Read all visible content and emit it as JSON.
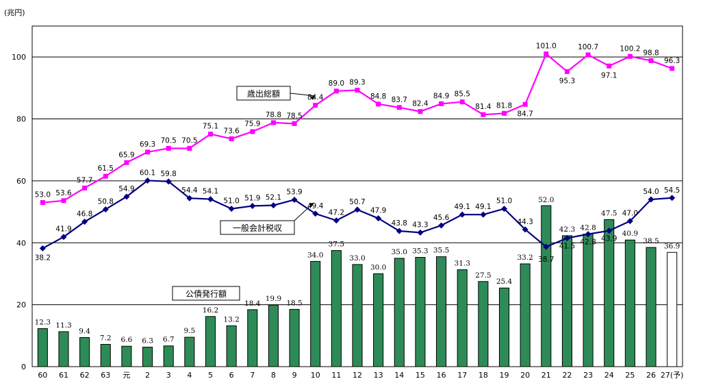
{
  "chart_data": {
    "type": "bar",
    "y_unit_label": "(兆円)",
    "categories": [
      "60",
      "61",
      "62",
      "63",
      "元",
      "2",
      "3",
      "4",
      "5",
      "6",
      "7",
      "8",
      "9",
      "10",
      "11",
      "12",
      "13",
      "14",
      "15",
      "16",
      "17",
      "18",
      "19",
      "20",
      "21",
      "22",
      "23",
      "24",
      "25",
      "26",
      "27(予)"
    ],
    "ylim": [
      0,
      110
    ],
    "yticks": [
      0,
      20,
      40,
      60,
      80,
      100
    ],
    "grid": true,
    "series": [
      {
        "name": "歳出総額",
        "kind": "line",
        "color": "#ff00ff",
        "marker": "square",
        "values": [
          53.0,
          53.6,
          57.7,
          61.5,
          65.9,
          69.3,
          70.5,
          70.5,
          75.1,
          73.6,
          75.9,
          78.8,
          78.5,
          84.4,
          89.0,
          89.3,
          84.8,
          83.7,
          82.4,
          84.9,
          85.5,
          81.4,
          81.8,
          84.7,
          101.0,
          95.3,
          100.7,
          97.1,
          100.2,
          98.8,
          96.3
        ],
        "labels": [
          "53.0",
          "53.6",
          "57.7",
          "61.5",
          "65.9",
          "69.3",
          "70.5",
          "70.5",
          "75.1",
          "73.6",
          "75.9",
          "78.8",
          "78.5",
          "84.4",
          "89.0",
          "89.3",
          "84.8",
          "83.7",
          "82.4",
          "84.9",
          "85.5",
          "81.4",
          "81.8",
          "84.7",
          "101.0",
          "95.3",
          "100.7",
          "97.1",
          "100.2",
          "98.8",
          "96.3"
        ]
      },
      {
        "name": "一般会計税収",
        "kind": "line",
        "color": "#000080",
        "marker": "diamond",
        "values": [
          38.2,
          41.9,
          46.8,
          50.8,
          54.9,
          60.1,
          59.8,
          54.4,
          54.1,
          51.0,
          51.9,
          52.1,
          53.9,
          49.4,
          47.2,
          50.7,
          47.9,
          43.8,
          43.3,
          45.6,
          49.1,
          49.1,
          51.0,
          44.3,
          38.7,
          41.5,
          42.8,
          43.9,
          47.0,
          54.0,
          54.5
        ],
        "labels": [
          "38.2",
          "41.9",
          "46.8",
          "50.8",
          "54.9",
          "60.1",
          "59.8",
          "54.4",
          "54.1",
          "51.0",
          "51.9",
          "52.1",
          "53.9",
          "49.4",
          "47.2",
          "50.7",
          "47.9",
          "43.8",
          "43.3",
          "45.6",
          "49.1",
          "49.1",
          "51.0",
          "44.3",
          "38.7",
          "41.5",
          "42.8",
          "43.9",
          "47.0",
          "54.0",
          "54.5"
        ]
      },
      {
        "name": "公債発行額",
        "kind": "bar",
        "color": "#2e8b57",
        "last_bar_color": "#ffffff",
        "values": [
          12.3,
          11.3,
          9.4,
          7.2,
          6.6,
          6.3,
          6.7,
          9.5,
          16.2,
          13.2,
          18.4,
          19.9,
          18.5,
          34.0,
          37.5,
          33.0,
          30.0,
          35.0,
          35.3,
          35.5,
          31.3,
          27.5,
          25.4,
          33.2,
          52.0,
          42.3,
          42.8,
          47.5,
          40.9,
          38.5,
          36.9
        ],
        "labels": [
          "12.3",
          "11.3",
          "9.4",
          "7.2",
          "6.6",
          "6.3",
          "6.7",
          "9.5",
          "16.2",
          "13.2",
          "18.4",
          "19.9",
          "18.5",
          "34.0",
          "37.5",
          "33.0",
          "30.0",
          "35.0",
          "35.3",
          "35.5",
          "31.3",
          "27.5",
          "25.4",
          "33.2",
          "52.0",
          "42.3",
          "42.8",
          "47.5",
          "40.9",
          "38.5",
          "36.9"
        ]
      }
    ]
  }
}
